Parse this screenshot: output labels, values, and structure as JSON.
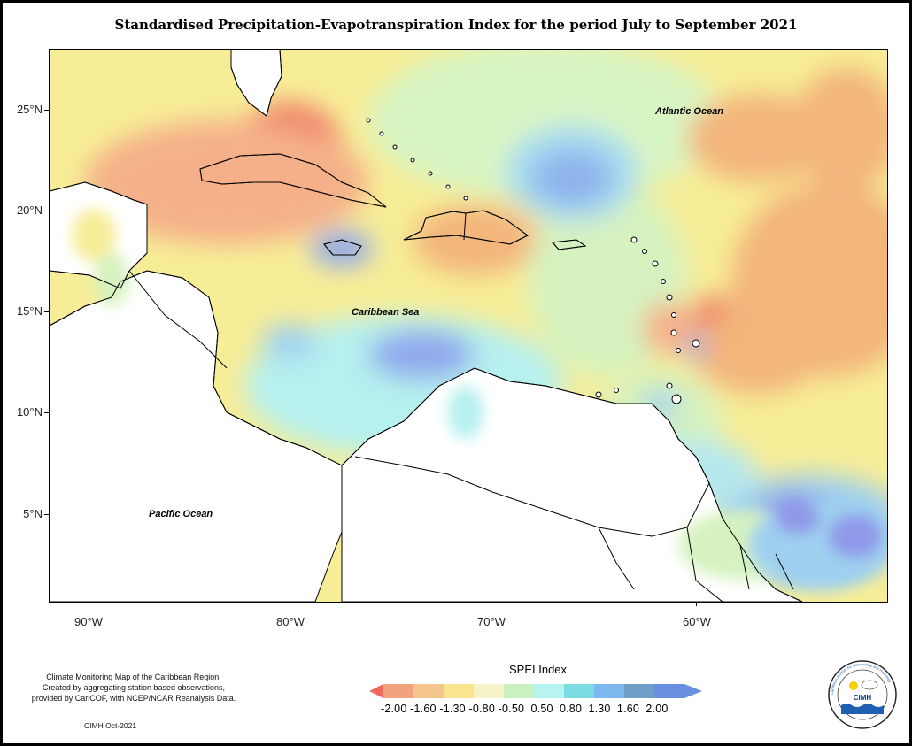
{
  "title": "Standardised Precipitation-Evapotranspiration Index for the period July to September 2021",
  "map": {
    "lat_labels": [
      "25°N",
      "20°N",
      "15°N",
      "10°N",
      "5°N"
    ],
    "lon_labels": [
      "90°W",
      "80°W",
      "70°W",
      "60°W"
    ],
    "oceans": {
      "atlantic": "Atlantic Ocean",
      "caribbean": "Caribbean Sea",
      "pacific": "Pacific Ocean"
    }
  },
  "legend": {
    "title": "SPEI Index",
    "labels": "-2.00 -1.60 -1.30 -0.80 -0.50  0.50  0.80  1.30  1.60  2.00",
    "colors": [
      "#ef6a5a",
      "#f0a37c",
      "#f5c58e",
      "#f8e58e",
      "#f6f3c8",
      "#c8f0c0",
      "#b8f4ef",
      "#7adbe0",
      "#7fb7ef",
      "#6f9fc7",
      "#6a8ee0"
    ]
  },
  "caption": {
    "line1": "Climate Monitoring Map of the Caribbean Region.",
    "line2": "Created by aggregating station based observations,",
    "line3": "provided by CariCOF, with NCEP/NCAR Reanalysis Data."
  },
  "credit": "CIMH Oct-2021",
  "logo": {
    "name": "CIMH",
    "ring_text": "Caribbean Institute for Meteorology and Hydrology"
  }
}
